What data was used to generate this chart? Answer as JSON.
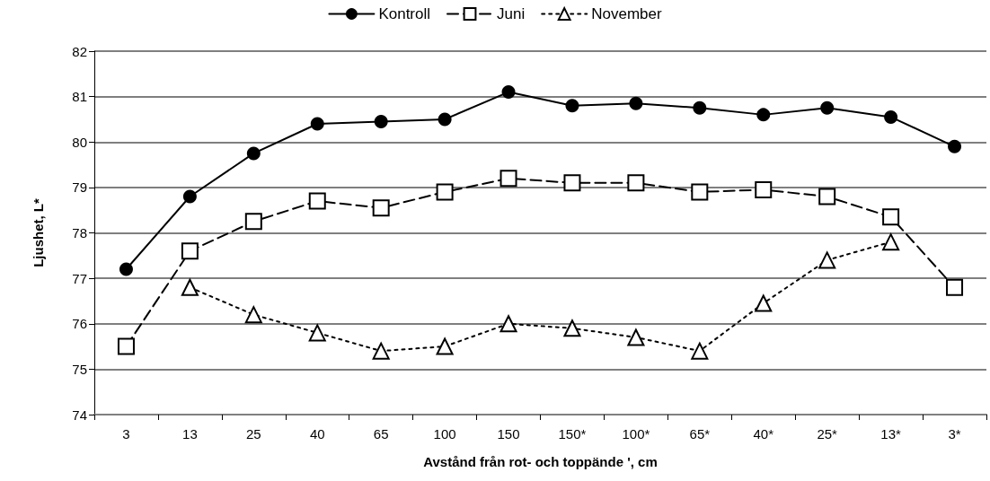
{
  "chart_data": {
    "type": "line",
    "xlabel": "Avstånd från rot- och toppände ', cm",
    "ylabel": "Ljushet, L*",
    "categories": [
      "3",
      "13",
      "25",
      "40",
      "65",
      "100",
      "150",
      "150*",
      "100*",
      "65*",
      "40*",
      "25*",
      "13*",
      "3*"
    ],
    "ylim": [
      74,
      82
    ],
    "yticks": [
      74,
      75,
      76,
      77,
      78,
      79,
      80,
      81,
      82
    ],
    "grid": "y",
    "legend": "top",
    "series": [
      {
        "name": "Kontroll",
        "color": "#000000",
        "marker": "circle",
        "line_style": "solid",
        "values": [
          77.2,
          78.8,
          79.75,
          80.4,
          80.45,
          80.5,
          81.1,
          80.8,
          80.85,
          80.75,
          80.6,
          80.75,
          80.55,
          79.9
        ]
      },
      {
        "name": "Juni",
        "color": "#000000",
        "marker": "square",
        "line_style": "dashed",
        "values": [
          75.5,
          77.6,
          78.25,
          78.7,
          78.55,
          78.9,
          79.2,
          79.1,
          79.1,
          78.9,
          78.95,
          78.8,
          78.35,
          76.8
        ]
      },
      {
        "name": "November",
        "color": "#000000",
        "marker": "triangle",
        "line_style": "dotted",
        "values": [
          null,
          76.8,
          76.2,
          75.8,
          75.4,
          75.5,
          76.0,
          75.9,
          75.7,
          75.4,
          76.45,
          77.4,
          77.8,
          null
        ]
      }
    ]
  }
}
